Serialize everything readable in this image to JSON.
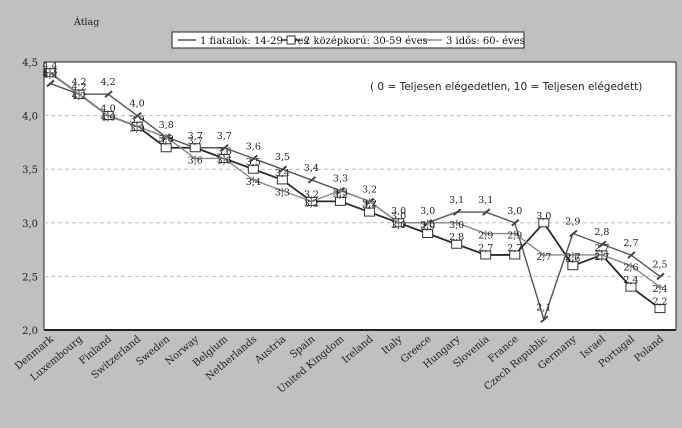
{
  "chart_data": {
    "type": "line",
    "categories": [
      "Denmark",
      "Luxembourg",
      "Finland",
      "Switzerland",
      "Sweden",
      "Norway",
      "Belgium",
      "Netherlands",
      "Austria",
      "Spain",
      "United Kingdom",
      "Ireland",
      "Italy",
      "Greece",
      "Hungary",
      "Slovenia",
      "France",
      "Czech Republic",
      "Germany",
      "Israel",
      "Portugal",
      "Poland"
    ],
    "series": [
      {
        "name": "1  fiatalok: 14-29 éves",
        "color": "#555555",
        "values": [
          4.3,
          4.2,
          4.2,
          4.0,
          3.8,
          3.7,
          3.7,
          3.6,
          3.5,
          3.4,
          3.3,
          3.2,
          3.0,
          3.0,
          3.1,
          3.1,
          3.0,
          2.1,
          2.9,
          2.8,
          2.7,
          2.5
        ],
        "labels": [
          "4,3",
          "4,2",
          "4,2",
          "4,0",
          "3,8",
          "3,7",
          "3,7",
          "3,6",
          "3,5",
          "3,4",
          "3,3",
          "3,2",
          "3,0",
          "3,0",
          "3,1",
          "3,1",
          "3,0",
          "2,1",
          "2,9",
          "2,8",
          "2,7",
          "2,5"
        ]
      },
      {
        "name": "2  középkorú: 30-59 éves",
        "color": "#2a2a2a",
        "values": [
          4.4,
          4.2,
          4.0,
          3.9,
          3.7,
          3.7,
          3.6,
          3.5,
          3.4,
          3.2,
          3.2,
          3.1,
          3.0,
          2.9,
          2.8,
          2.7,
          2.7,
          3.0,
          2.6,
          2.7,
          2.4,
          2.2
        ],
        "labels": [
          "4,4",
          "4,2",
          "4,0",
          "3,9",
          "3,7",
          "3,7",
          "3,6",
          "3,5",
          "3,4",
          "3,2",
          "3,2",
          "3,1",
          "3,0",
          "2,9",
          "2,8",
          "2,7",
          "2,7",
          "3,0",
          "2,6",
          "2,7",
          "2,4",
          "2,2"
        ]
      },
      {
        "name": "3  idős: 60- éves",
        "color": "#8a8a8a",
        "values": [
          4.4,
          4.2,
          4.0,
          3.9,
          3.8,
          3.6,
          3.6,
          3.4,
          3.3,
          3.2,
          3.3,
          3.2,
          3.0,
          3.0,
          3.0,
          2.9,
          2.9,
          2.7,
          2.7,
          2.7,
          2.6,
          2.4
        ],
        "labels": [
          "4,4",
          "4,2",
          "4,0",
          "3,9",
          "3,8",
          "3,6",
          "3,6",
          "3,4",
          "3,3",
          "3,2",
          "3,3",
          "3,2",
          "3,0",
          "3,0",
          "3,0",
          "2,9",
          "2,9",
          "2,7",
          "2,7",
          "2,7",
          "2,6",
          "2,4"
        ]
      }
    ],
    "ylim": [
      2.0,
      4.5
    ],
    "yticks": [
      "2,0",
      "2,5",
      "3,0",
      "3,5",
      "4,0",
      "4,5"
    ],
    "ytick_values": [
      2.0,
      2.5,
      3.0,
      3.5,
      4.0,
      4.5
    ],
    "annotation_avg": "Átlag",
    "note": "( 0 = Teljesen elégedetlen, 10 = Teljesen elégedett)",
    "legend_position": "top-center",
    "grid": true
  }
}
